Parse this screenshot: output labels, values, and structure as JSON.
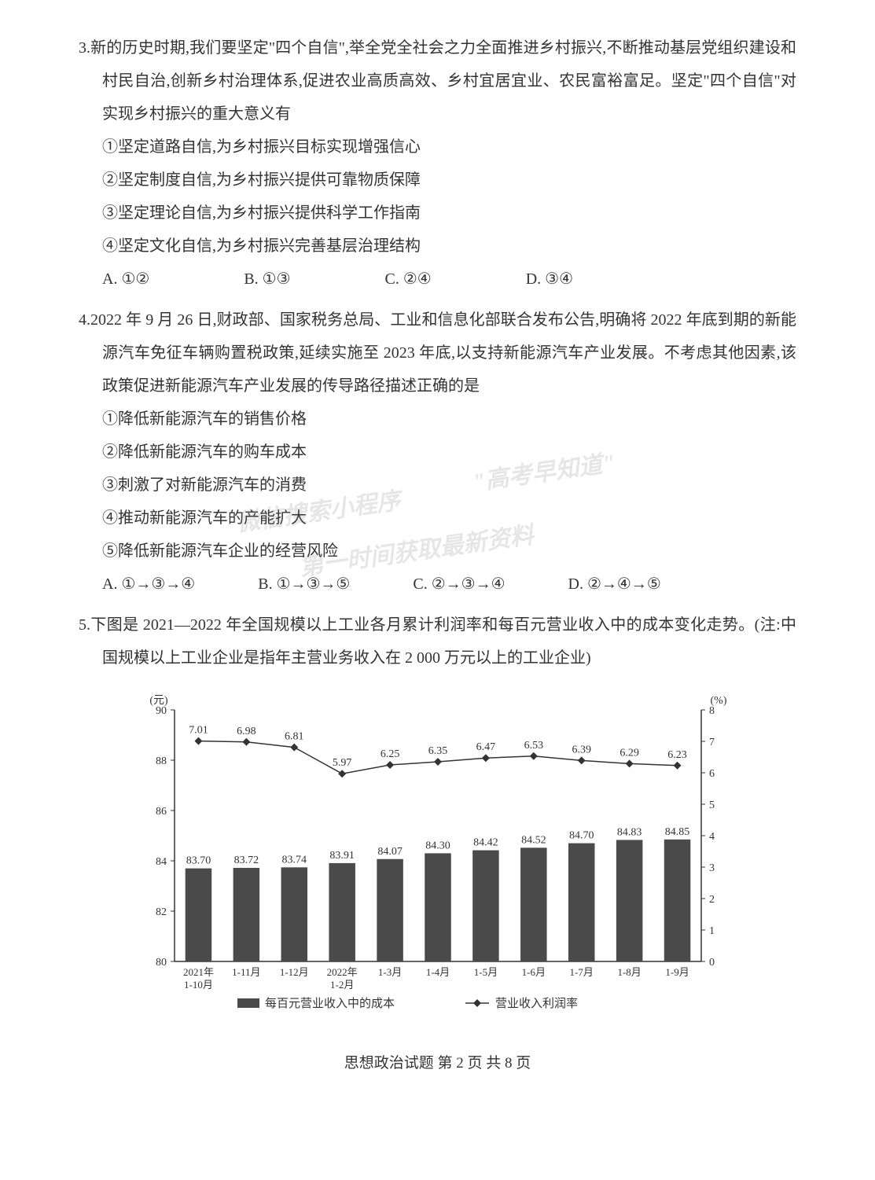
{
  "q3": {
    "num": "3.",
    "text": "新的历史时期,我们要坚定\"四个自信\",举全党全社会之力全面推进乡村振兴,不断推动基层党组织建设和村民自治,创新乡村治理体系,促进农业高质高效、乡村宜居宜业、农民富裕富足。坚定\"四个自信\"对实现乡村振兴的重大意义有",
    "opts": [
      "①坚定道路自信,为乡村振兴目标实现增强信心",
      "②坚定制度自信,为乡村振兴提供可靠物质保障",
      "③坚定理论自信,为乡村振兴提供科学工作指南",
      "④坚定文化自信,为乡村振兴完善基层治理结构"
    ],
    "choices": [
      "A. ①②",
      "B. ①③",
      "C. ②④",
      "D. ③④"
    ]
  },
  "q4": {
    "num": "4.",
    "text": "2022 年 9 月 26 日,财政部、国家税务总局、工业和信息化部联合发布公告,明确将 2022 年底到期的新能源汽车免征车辆购置税政策,延续实施至 2023 年底,以支持新能源汽车产业发展。不考虑其他因素,该政策促进新能源汽车产业发展的传导路径描述正确的是",
    "opts": [
      "①降低新能源汽车的销售价格",
      "②降低新能源汽车的购车成本",
      "③刺激了对新能源汽车的消费",
      "④推动新能源汽车的产能扩大",
      "⑤降低新能源汽车企业的经营风险"
    ],
    "choices": [
      "A. ①→③→④",
      "B. ①→③→⑤",
      "C. ②→③→④",
      "D. ②→④→⑤"
    ]
  },
  "q5": {
    "num": "5.",
    "text": "下图是 2021—2022 年全国规模以上工业各月累计利润率和每百元营业收入中的成本变化走势。(注:中国规模以上工业企业是指年主营业务收入在 2 000 万元以上的工业企业)"
  },
  "chart": {
    "y1_unit": "(元)",
    "y2_unit": "(%)",
    "y1_ticks": [
      80,
      82,
      84,
      86,
      88,
      90
    ],
    "y2_ticks": [
      0,
      1,
      2,
      3,
      4,
      5,
      6,
      7,
      8
    ],
    "x_labels_top": [
      "2021年",
      "1-11月",
      "1-12月",
      "2022年",
      "1-3月",
      "1-4月",
      "1-5月",
      "1-6月",
      "1-7月",
      "1-8月",
      "1-9月"
    ],
    "x_labels_bot": [
      "1-10月",
      "",
      "",
      "1-2月",
      "",
      "",
      "",
      "",
      "",
      "",
      ""
    ],
    "bar_values": [
      83.7,
      83.72,
      83.74,
      83.91,
      84.07,
      84.3,
      84.42,
      84.52,
      84.7,
      84.83,
      84.85
    ],
    "line_values": [
      7.01,
      6.98,
      6.81,
      5.97,
      6.25,
      6.35,
      6.47,
      6.53,
      6.39,
      6.29,
      6.23
    ],
    "bar_color": "#4a4a4a",
    "line_color": "#333333",
    "axis_color": "#333333",
    "bg_color": "#ffffff",
    "bar_width": 0.55,
    "y1_range": [
      80,
      90
    ],
    "y2_range": [
      0,
      8
    ],
    "legend_bar": "每百元营业收入中的成本",
    "legend_line": "营业收入利润率",
    "label_fontsize": 14,
    "value_fontsize": 14
  },
  "footer": "思想政治试题  第 2 页  共 8 页",
  "watermark": {
    "l1": "\"高考早知道\"",
    "l2": "微信搜索小程序",
    "l3": "第一时间获取最新资料"
  }
}
